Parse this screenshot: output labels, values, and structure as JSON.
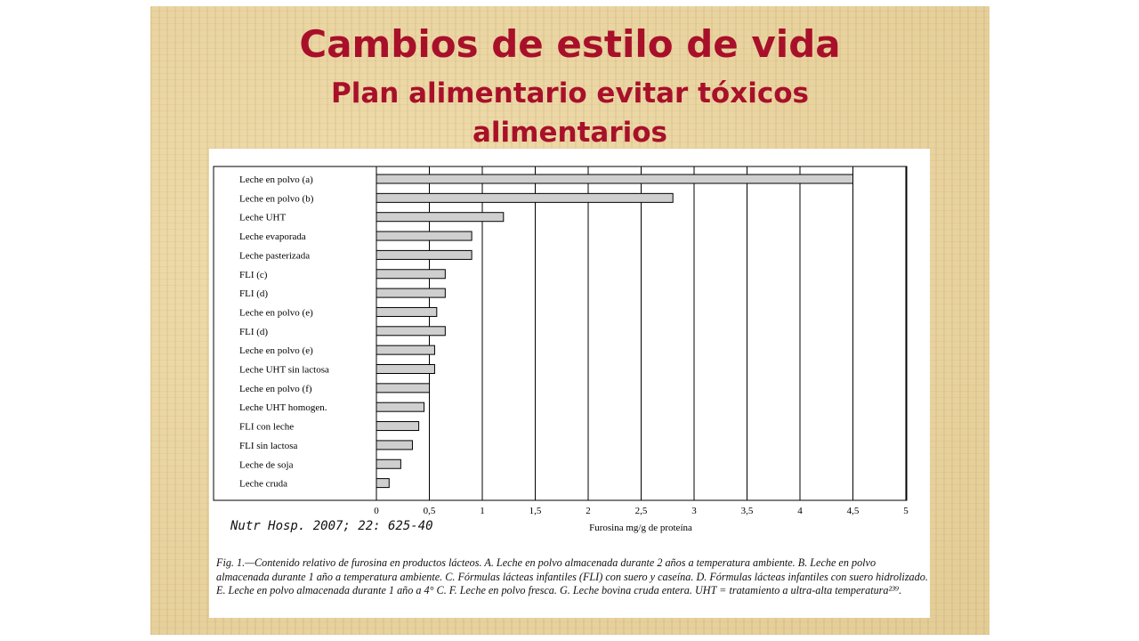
{
  "slide": {
    "title_line1": "Cambios de estilo de vida",
    "title_line2": "Plan alimentario evitar tóxicos",
    "title_line3": "alimentarios",
    "citation": "Nutr Hosp. 2007; 22: 625-40",
    "caption": "Fig. 1.—Contenido relativo de furosina en productos lácteos. A. Leche en polvo almacenada durante 2 años a temperatura ambiente. B. Leche en polvo almacenada durante 1 año a temperatura ambiente. C. Fórmulas lácteas infantiles (FLI) con suero y caseína. D. Fórmulas lácteas infantiles con suero hidrolizado. E. Leche en polvo almacenada durante 1 año a 4° C. F. Leche en polvo fresca. G. Leche bovina cruda entera. UHT = tratamiento a ultra-alta temperatura²³⁹.",
    "background_color": "#e8d4a0",
    "title_color": "#a8102a"
  },
  "chart_data": {
    "type": "bar",
    "orientation": "horizontal",
    "categories": [
      "Leche en polvo (a)",
      "Leche en polvo (b)",
      "Leche UHT",
      "Leche evaporada",
      "Leche pasterizada",
      "FLI (c)",
      "FLI (d)",
      "Leche en polvo (e)",
      "FLI (d)",
      "Leche en polvo (e)",
      "Leche UHT sin lactosa",
      "Leche en polvo (f)",
      "Leche UHT homogen.",
      "FLI con leche",
      "FLI sin lactosa",
      "Leche de soja",
      "Leche cruda"
    ],
    "values": [
      4.5,
      2.8,
      1.2,
      0.9,
      0.9,
      0.65,
      0.65,
      0.57,
      0.65,
      0.55,
      0.55,
      0.5,
      0.45,
      0.4,
      0.34,
      0.23,
      0.12
    ],
    "xlabel": "Furosina mg/g de proteína",
    "ylabel": "",
    "xlim": [
      0,
      5
    ],
    "xticks": [
      0,
      0.5,
      1,
      1.5,
      2,
      2.5,
      3,
      3.5,
      4,
      4.5,
      5
    ],
    "xtick_labels": [
      "0",
      "0,5",
      "1",
      "1,5",
      "2",
      "2,5",
      "3",
      "3,5",
      "4",
      "4,5",
      "5"
    ],
    "grid": "vertical",
    "bar_color": "#cfcfcf",
    "legend": "none"
  }
}
